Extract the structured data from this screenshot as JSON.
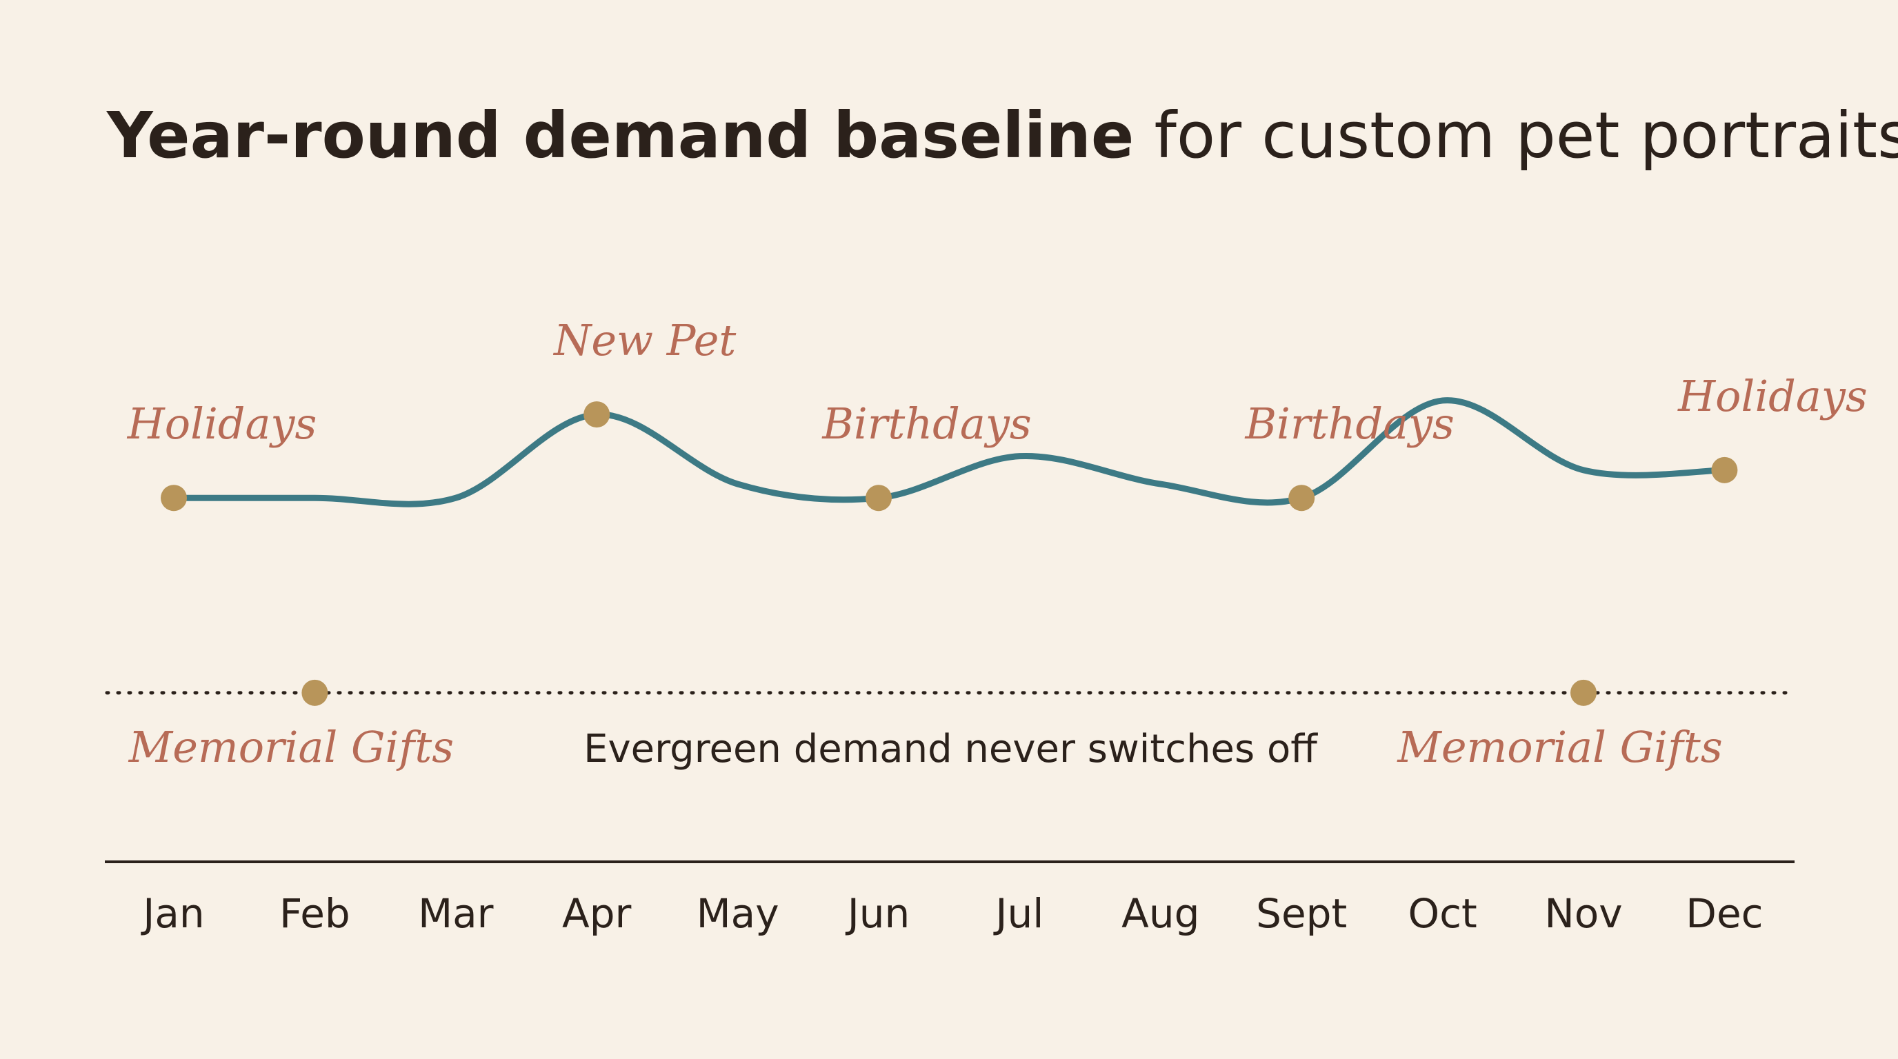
{
  "title": {
    "bold": "Year-round demand baseline",
    "regular": " for custom pet portraits"
  },
  "colors": {
    "background": "#f8f1e7",
    "line": "#3d7a85",
    "marker": "#b8955a",
    "event_text": "#b76b56",
    "text": "#2b211b"
  },
  "chart_data": {
    "type": "line",
    "title": "Year-round demand baseline for custom pet portraits",
    "categories": [
      "Jan",
      "Feb",
      "Mar",
      "Apr",
      "May",
      "Jun",
      "Jul",
      "Aug",
      "Sept",
      "Oct",
      "Nov",
      "Dec"
    ],
    "series": [
      {
        "values": [
          100,
          100,
          100,
          106,
          101,
          100,
          103,
          101,
          100,
          107,
          102,
          102
        ]
      }
    ],
    "ylim": [
      85,
      112
    ],
    "grid": false,
    "baseline": {
      "value": 86,
      "style": "dotted",
      "label": "Evergreen demand never switches off",
      "markers": [
        {
          "month": "Feb",
          "label": "Memorial Gifts"
        },
        {
          "month": "Nov",
          "label": "Memorial Gifts"
        }
      ]
    },
    "events": [
      {
        "month": "Jan",
        "label": "Holidays"
      },
      {
        "month": "Apr",
        "label": "New Pet"
      },
      {
        "month": "Jun",
        "label": "Birthdays"
      },
      {
        "month": "Sept",
        "label": "Birthdays"
      },
      {
        "month": "Dec",
        "label": "Holidays"
      }
    ]
  }
}
